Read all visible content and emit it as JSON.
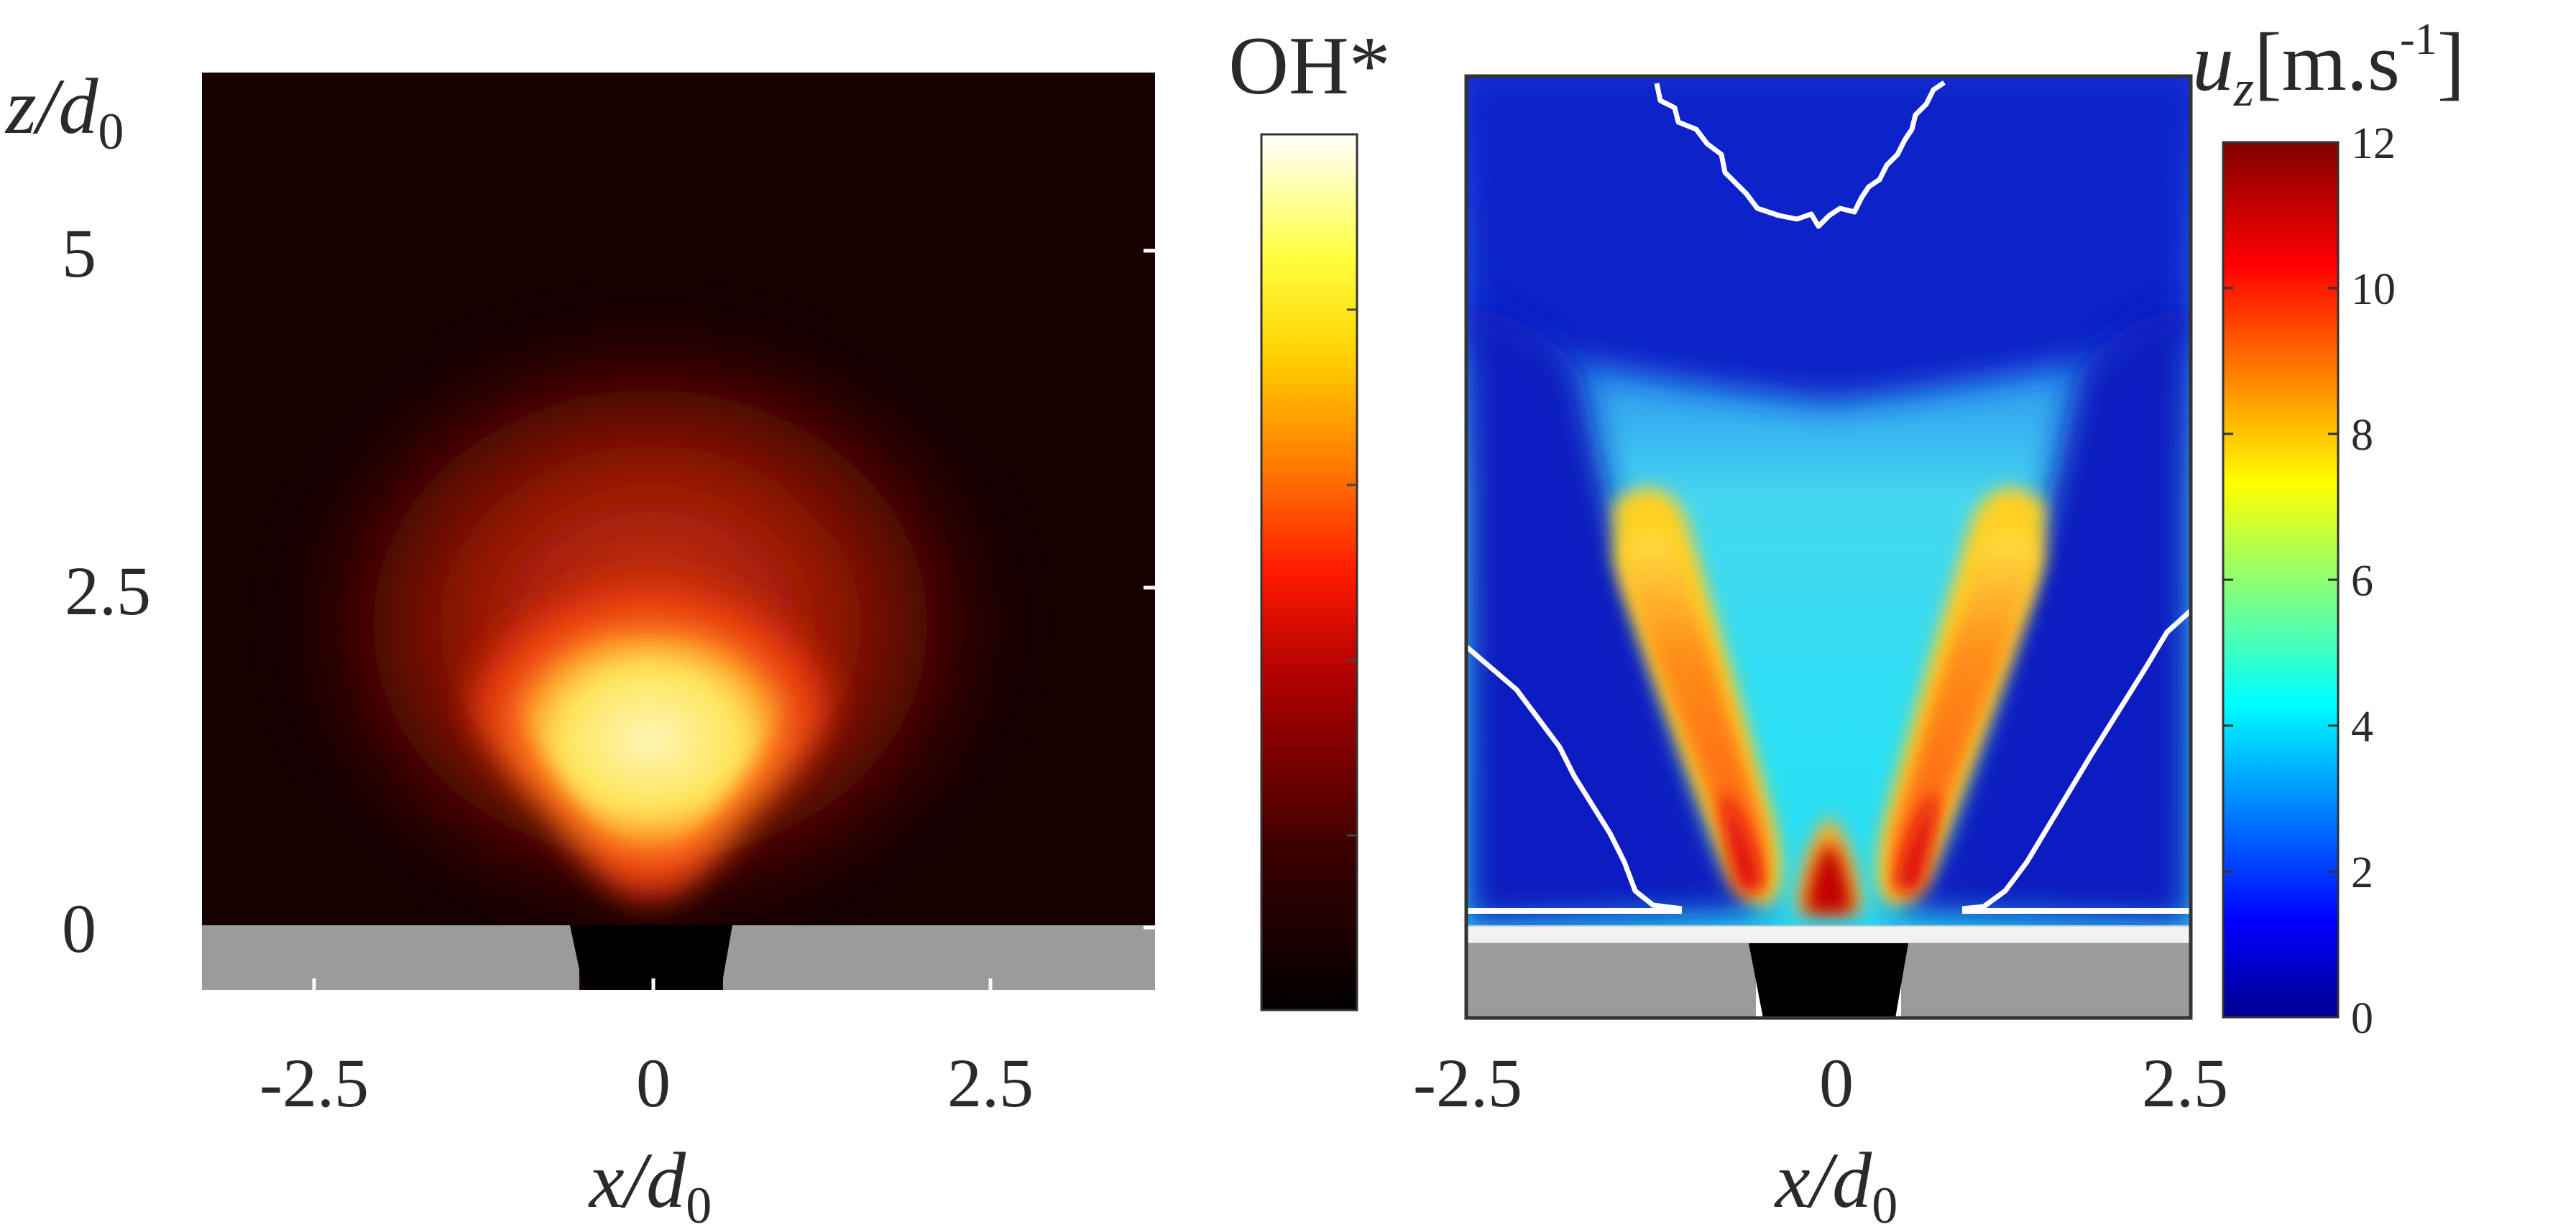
{
  "chart_data": [
    {
      "type": "heatmap",
      "title": "",
      "xlabel": "x/d0",
      "ylabel": "z/d0",
      "xlim": [
        -3.5,
        3.5
      ],
      "ylim": [
        -0.45,
        6.2
      ],
      "x_ticks": [
        "-2.5",
        "0",
        "2.5"
      ],
      "y_ticks": [
        "0",
        "2.5",
        "5"
      ],
      "colorbar": {
        "label": "OH*",
        "colormap": "hot",
        "ticks": []
      },
      "description_values": {
        "peak_x": 0.0,
        "peak_z": 1.7,
        "peak_level": 1.0
      }
    },
    {
      "type": "heatmap",
      "title": "",
      "xlabel": "x/d0",
      "ylabel": "",
      "xlim": [
        -2.5,
        2.5
      ],
      "ylim": [
        -0.45,
        6.2
      ],
      "x_ticks": [
        "-2.5",
        "0",
        "2.5"
      ],
      "colorbar": {
        "label_main": "u",
        "label_sub": "z",
        "label_unit": "[m.s",
        "label_exp": "-1",
        "label_close": "]",
        "colormap": "jet",
        "range": [
          0,
          12
        ],
        "ticks": [
          "0",
          "2",
          "4",
          "6",
          "8",
          "10",
          "12"
        ]
      },
      "description_values": {
        "jet_left_x": -1.0,
        "jet_right_x": 1.0,
        "jet_peak_u": 10,
        "center_peak_u": 12
      }
    }
  ],
  "labels": {
    "left_ylabel_main": "z/d",
    "left_ylabel_sub": "0",
    "left_xlabel_main": "x/d",
    "left_xlabel_sub": "0",
    "right_xlabel_main": "x/d",
    "right_xlabel_sub": "0"
  }
}
